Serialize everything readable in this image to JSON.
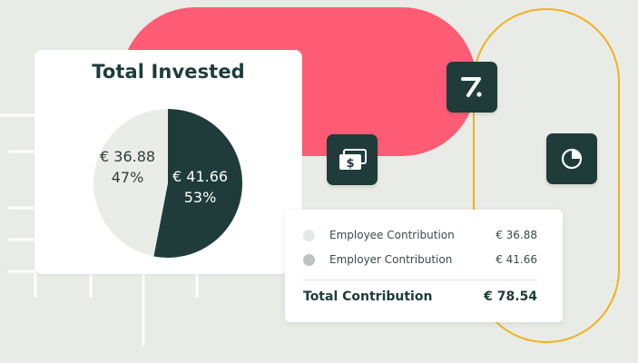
{
  "colors": {
    "background": "#e9ece6",
    "accent_red": "#fe5c74",
    "accent_yellow": "#f2b01e",
    "dark_green": "#1f3c3a",
    "light_slice": "#eaede7",
    "employee_dot": "#e6e8e3",
    "employer_dot": "#bfc3bd"
  },
  "invested_card": {
    "title": "Total Invested"
  },
  "chart_data": {
    "type": "pie",
    "title": "Total Invested",
    "slices": [
      {
        "value": 36.88,
        "percent": 47,
        "value_label": "€ 36.88",
        "percent_label": "47%",
        "color": "#eaede7"
      },
      {
        "value": 41.66,
        "percent": 53,
        "value_label": "€ 41.66",
        "percent_label": "53%",
        "color": "#1f3c3a"
      }
    ]
  },
  "icons": {
    "logo": "z-logo-icon",
    "money": "money-bill-icon",
    "chart": "pie-chart-icon"
  },
  "contribution_card": {
    "rows": [
      {
        "label": "Employee Contribution",
        "value": "€ 36.88",
        "dot_color": "#e6e8e3"
      },
      {
        "label": "Employer Contribution",
        "value": "€ 41.66",
        "dot_color": "#bfc3bd"
      }
    ],
    "total_label": "Total Contribution",
    "total_value": "€ 78.54"
  }
}
